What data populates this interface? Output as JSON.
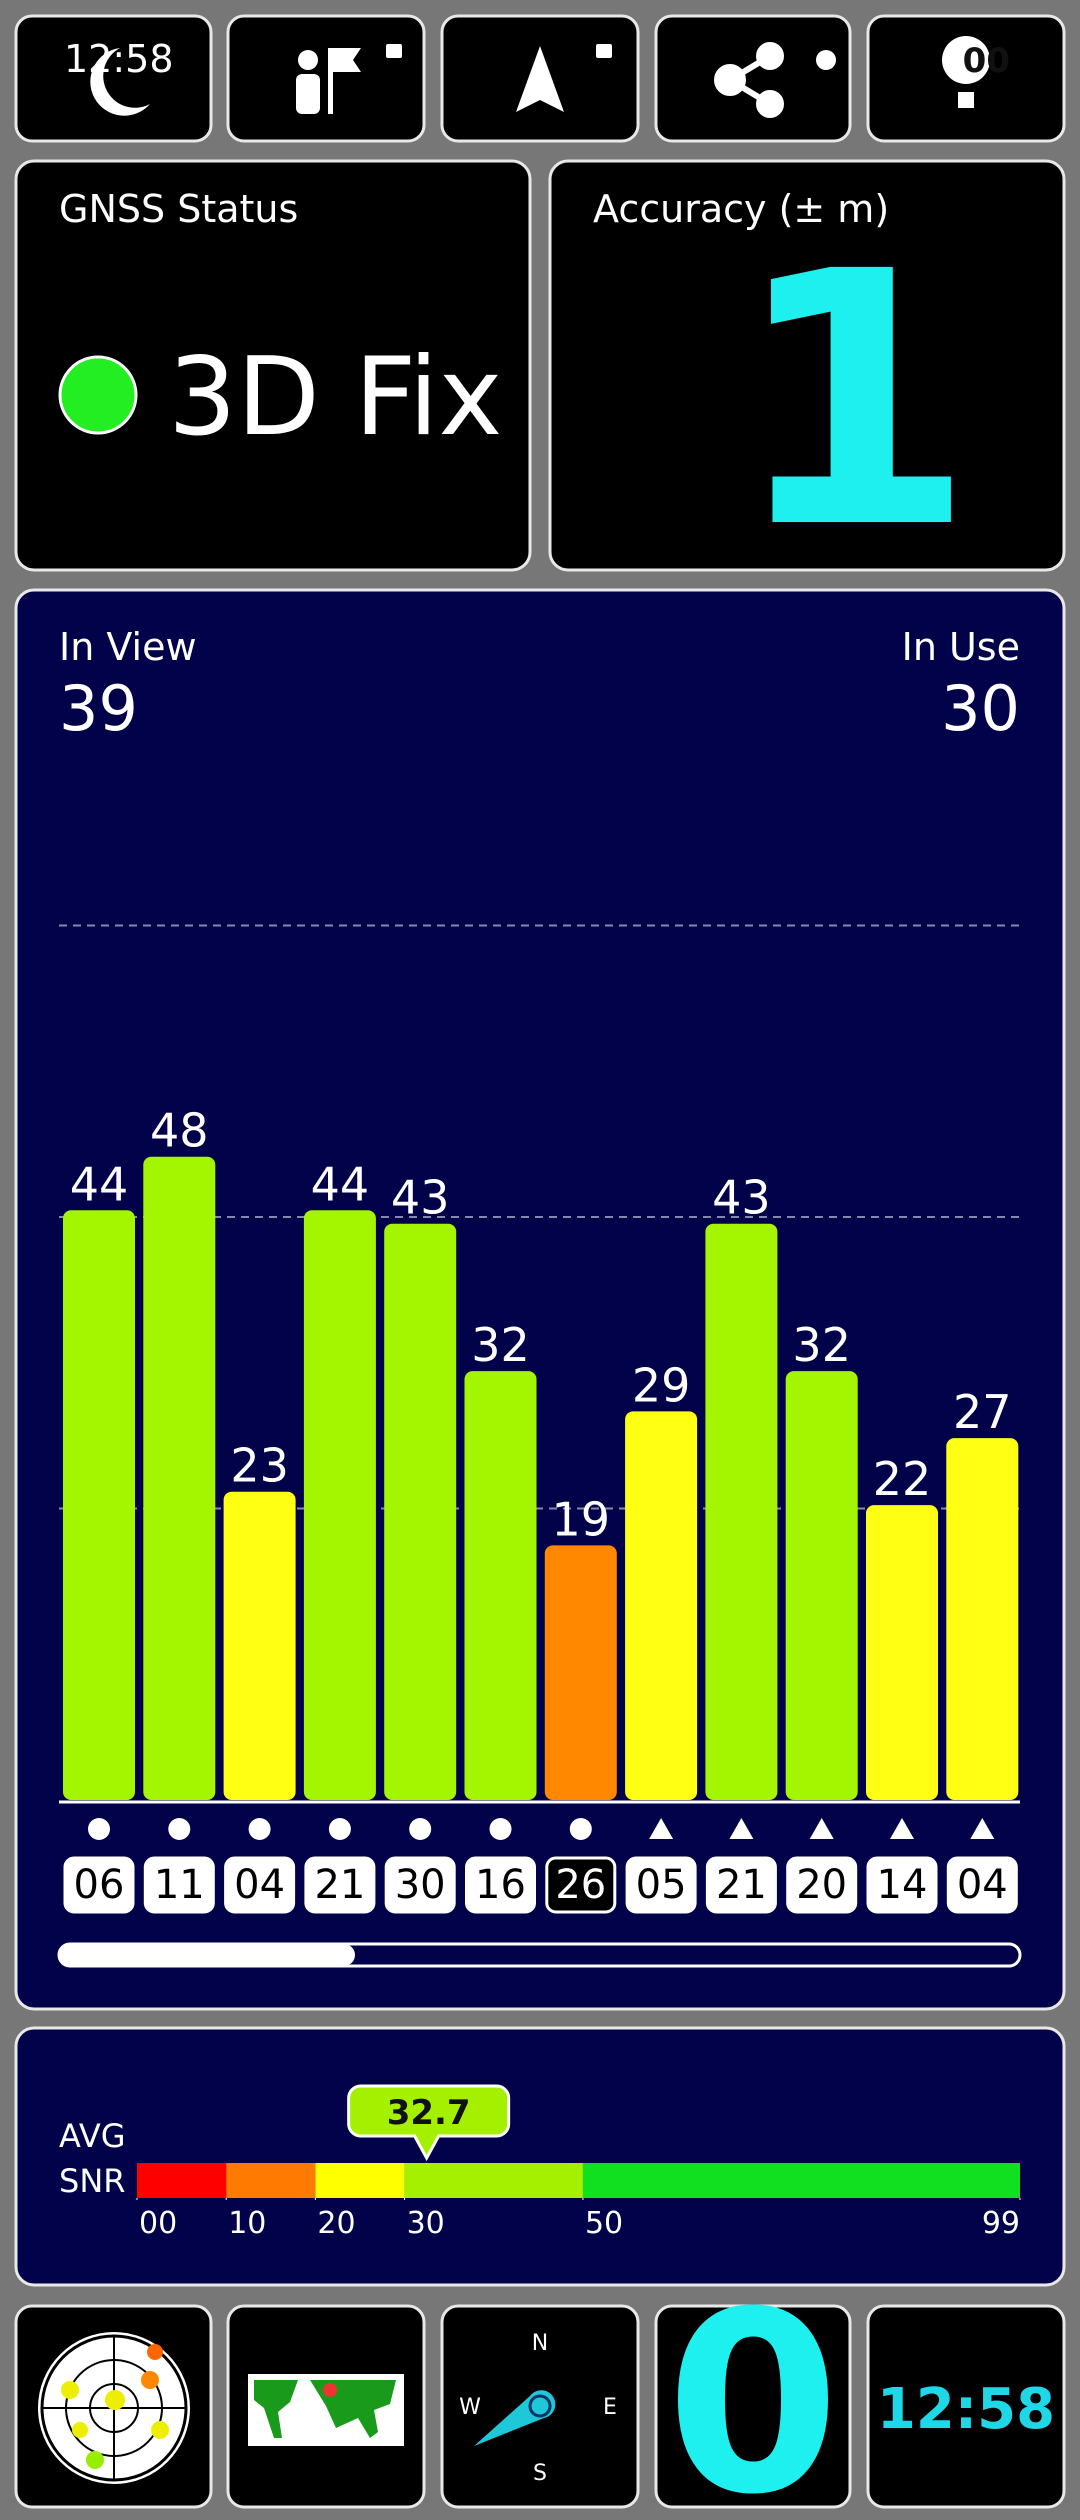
{
  "status_bar": {
    "time": "12:58",
    "battery": "00"
  },
  "gnss_status": {
    "label": "GNSS Status",
    "value": "3D Fix",
    "indicator_color": "#22ee22"
  },
  "accuracy": {
    "label": "Accuracy (± m)",
    "value": 1,
    "color": "#1ef0f0"
  },
  "satellites": {
    "in_view_label": "In View",
    "in_view": 39,
    "in_use_label": "In Use",
    "in_use": 30
  },
  "chart_data": {
    "type": "bar",
    "categories": [
      "06",
      "11",
      "04",
      "21",
      "30",
      "16",
      "26",
      "05",
      "21",
      "20",
      "14",
      "04"
    ],
    "values": [
      44,
      48,
      23,
      44,
      43,
      32,
      19,
      29,
      43,
      32,
      22,
      27
    ],
    "colors": [
      "#a4f500",
      "#a4f500",
      "#ffff14",
      "#a4f500",
      "#a4f500",
      "#a4f500",
      "#ff8800",
      "#ffff14",
      "#a4f500",
      "#a4f500",
      "#ffff14",
      "#ffff14"
    ],
    "markers": [
      "circle",
      "circle",
      "circle",
      "circle",
      "circle",
      "circle",
      "circle",
      "triangle",
      "triangle",
      "triangle",
      "triangle",
      "triangle"
    ],
    "highlighted_index": 6,
    "ylim": [
      0,
      87
    ],
    "grid_values": [
      21.75,
      43.5,
      65.25
    ]
  },
  "snr": {
    "label_line1": "AVG",
    "label_line2": "SNR",
    "average": 32.7,
    "xlim": [
      0,
      99
    ],
    "ticks": [
      {
        "value": 0,
        "label": "00"
      },
      10,
      20,
      30,
      50,
      99
    ],
    "band_colors": [
      "#ff0000",
      "#ff7a00",
      "#ffff00",
      "#a4f000",
      "#10e020"
    ]
  },
  "compass": {
    "n": "N",
    "e": "E",
    "s": "S",
    "w": "W"
  },
  "speed": 0,
  "clock": "12:58"
}
